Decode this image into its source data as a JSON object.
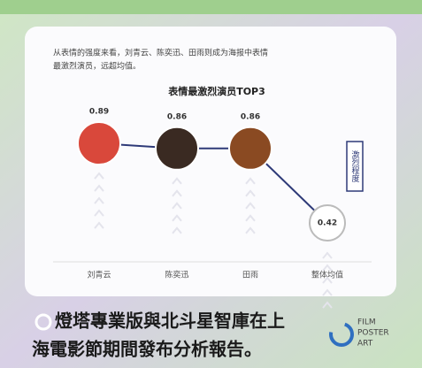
{
  "chart_data": {
    "type": "line",
    "subtitle_lines": [
      "从表情的强度来看，刘青云、陈奕迅、田雨则成为海报中表情",
      "最激烈演员，远超均值。"
    ],
    "title": "表情最激烈演员TOP3",
    "ylabel": "激烈程度",
    "categories": [
      "刘青云",
      "陈奕迅",
      "田雨",
      "整体均值"
    ],
    "series": [
      {
        "color": "#2e3a78",
        "values": [
          0.89,
          0.86,
          0.86,
          0.42
        ]
      }
    ],
    "point_colors": [
      "#d9483b",
      "#3a2a22",
      "#8a4a22",
      "#ffffff"
    ],
    "ylim": [
      0.3,
      1.0
    ]
  },
  "caption_lines": [
    "燈塔專業版與北斗星智庫在上",
    "海電影節期間發布分析報告。"
  ],
  "logo_lines": [
    "FILM",
    "POSTER",
    "ART"
  ]
}
